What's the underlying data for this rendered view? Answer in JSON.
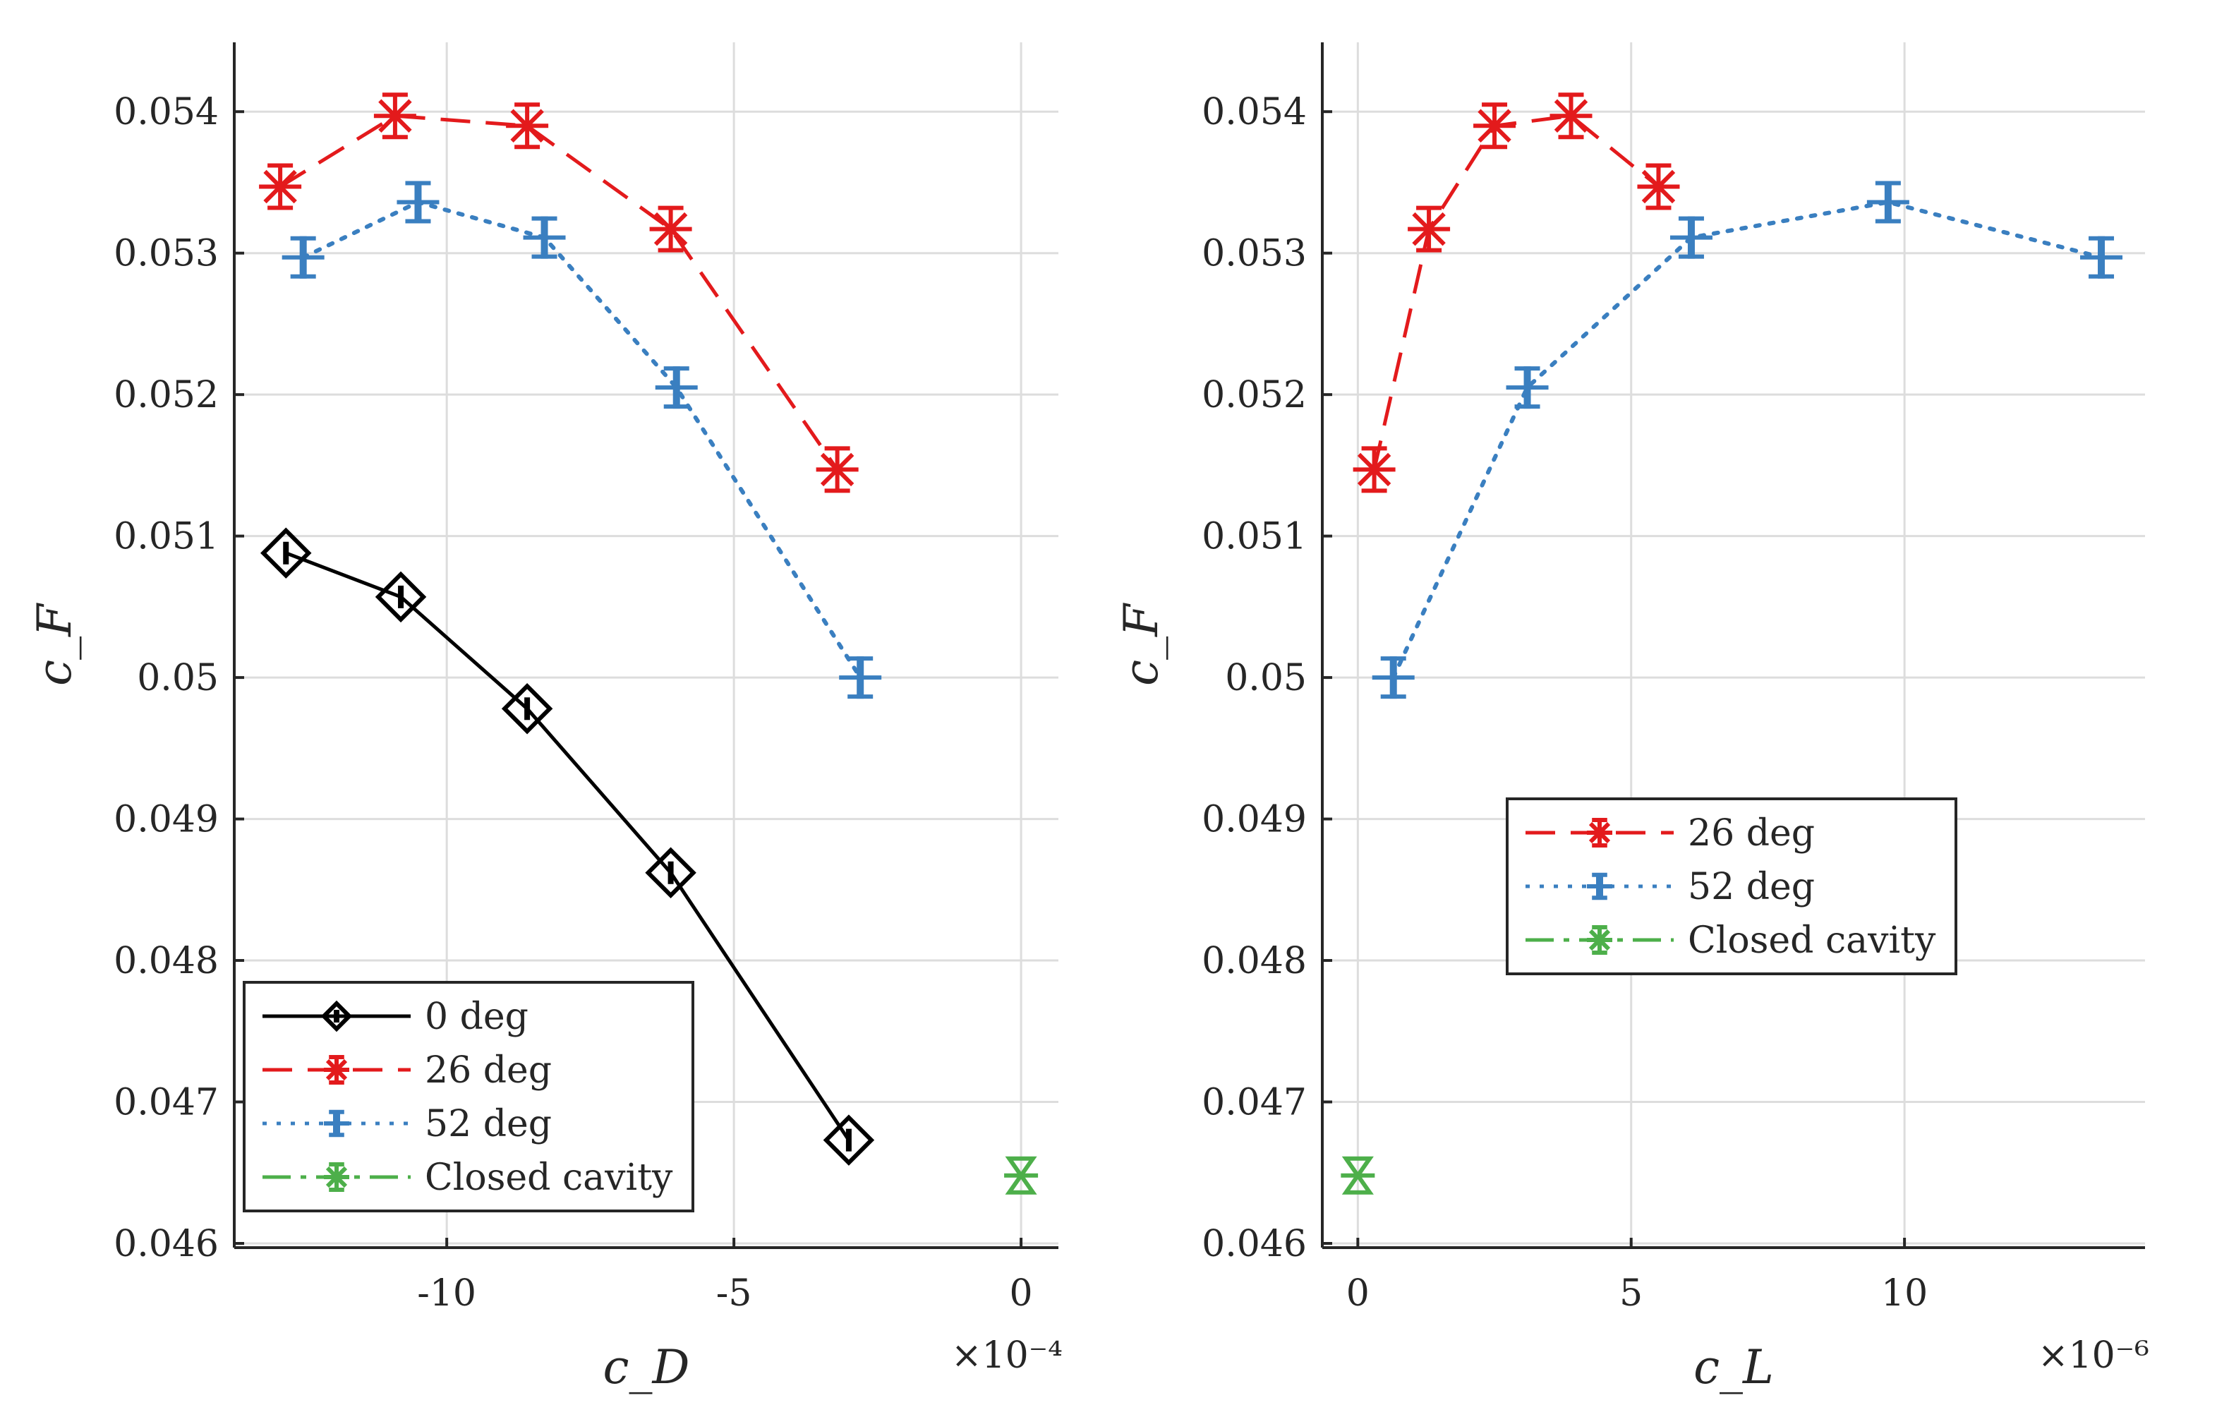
{
  "colors": {
    "deg0": "#000000",
    "deg26": "#e31a1c",
    "deg52": "#3a7fc0",
    "closed": "#4daf4a",
    "grid": "#dddddd",
    "axis": "#262626"
  },
  "chart_data": [
    {
      "type": "scatter",
      "id": "left",
      "xlabel": "c_D",
      "ylabel": "c_F",
      "x_exponent": "×10⁻⁴",
      "xlim": [
        -13.7,
        0.65
      ],
      "ylim": [
        0.04597,
        0.05449
      ],
      "xticks": [
        -10,
        -5,
        0
      ],
      "xtick_labels": [
        "-10",
        "-5",
        "0"
      ],
      "yticks": [
        0.046,
        0.047,
        0.048,
        0.049,
        0.05,
        0.051,
        0.052,
        0.053,
        0.054
      ],
      "ytick_labels": [
        "0.046",
        "0.047",
        "0.048",
        "0.049",
        "0.05",
        "0.051",
        "0.052",
        "0.053",
        "0.054"
      ],
      "grid": true,
      "legend": {
        "position": "bottom-left",
        "entries": [
          "0 deg",
          "26 deg",
          "52 deg",
          "Closed cavity"
        ]
      },
      "series": [
        {
          "name": "0 deg",
          "marker": "diamond",
          "line": "solid",
          "x": [
            -12.8,
            -10.8,
            -8.6,
            -6.1,
            -3.0
          ],
          "y": [
            0.05088,
            0.05057,
            0.04978,
            0.04862,
            0.04673
          ]
        },
        {
          "name": "26 deg",
          "marker": "asterisk",
          "line": "dashed",
          "x": [
            -12.9,
            -10.9,
            -8.6,
            -6.1,
            -3.2
          ],
          "y": [
            0.05347,
            0.05397,
            0.0539,
            0.05317,
            0.05147
          ]
        },
        {
          "name": "52 deg",
          "marker": "plus",
          "line": "dotted",
          "x": [
            -12.5,
            -10.5,
            -8.3,
            -6.0,
            -2.8
          ],
          "y": [
            0.05297,
            0.05336,
            0.05311,
            0.05205,
            0.05
          ]
        },
        {
          "name": "Closed cavity",
          "marker": "asterisk",
          "line": "none",
          "x": [
            0.0
          ],
          "y": [
            0.04648
          ]
        }
      ]
    },
    {
      "type": "scatter",
      "id": "right",
      "xlabel": "c_L",
      "ylabel": "c_F",
      "x_exponent": "×10⁻⁶",
      "xlim": [
        -0.65,
        14.4
      ],
      "ylim": [
        0.04597,
        0.05449
      ],
      "xticks": [
        0,
        5,
        10
      ],
      "xtick_labels": [
        "0",
        "5",
        "10"
      ],
      "yticks": [
        0.046,
        0.047,
        0.048,
        0.049,
        0.05,
        0.051,
        0.052,
        0.053,
        0.054
      ],
      "ytick_labels": [
        "0.046",
        "0.047",
        "0.048",
        "0.049",
        "0.05",
        "0.051",
        "0.052",
        "0.053",
        "0.054"
      ],
      "grid": true,
      "legend": {
        "position": "center-right",
        "entries": [
          "26 deg",
          "52 deg",
          "Closed cavity"
        ]
      },
      "series": [
        {
          "name": "26 deg",
          "marker": "asterisk",
          "line": "dashed",
          "x": [
            0.3,
            1.3,
            2.5,
            3.9,
            5.5
          ],
          "y": [
            0.05147,
            0.05317,
            0.0539,
            0.05397,
            0.05347
          ]
        },
        {
          "name": "52 deg",
          "marker": "plus",
          "line": "dotted",
          "x": [
            0.65,
            3.1,
            6.1,
            9.7,
            13.6
          ],
          "y": [
            0.05,
            0.05205,
            0.05311,
            0.05336,
            0.05297
          ]
        },
        {
          "name": "Closed cavity",
          "marker": "asterisk",
          "line": "none",
          "x": [
            0.0
          ],
          "y": [
            0.04648
          ]
        }
      ]
    }
  ]
}
